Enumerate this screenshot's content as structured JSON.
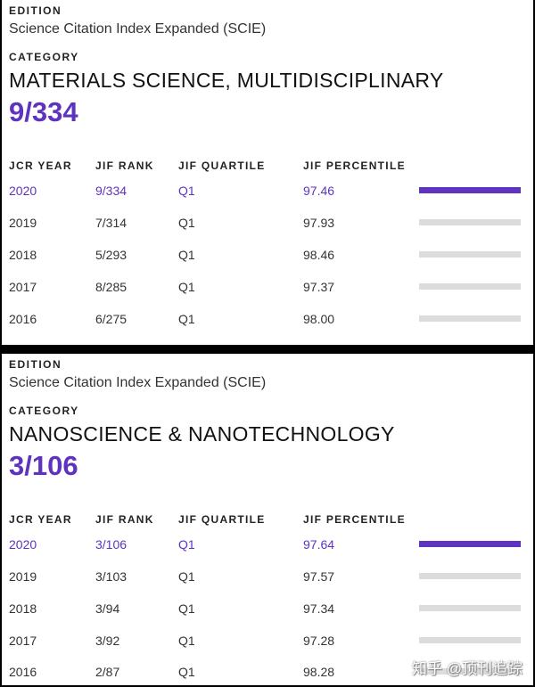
{
  "panels": [
    {
      "edition_label": "EDITION",
      "edition": "Science Citation Index Expanded (SCIE)",
      "category_label": "CATEGORY",
      "category": "MATERIALS SCIENCE, MULTIDISCIPLINARY",
      "rank": "9/334",
      "headers": [
        "JCR YEAR",
        "JIF RANK",
        "JIF QUARTILE",
        "JIF PERCENTILE"
      ],
      "rows": [
        [
          "2020",
          "9/334",
          "Q1",
          "97.46"
        ],
        [
          "2019",
          "7/314",
          "Q1",
          "97.93"
        ],
        [
          "2018",
          "5/293",
          "Q1",
          "98.46"
        ],
        [
          "2017",
          "8/285",
          "Q1",
          "97.37"
        ],
        [
          "2016",
          "6/275",
          "Q1",
          "98.00"
        ]
      ]
    },
    {
      "edition_label": "EDITION",
      "edition": "Science Citation Index Expanded (SCIE)",
      "category_label": "CATEGORY",
      "category": "NANOSCIENCE & NANOTECHNOLOGY",
      "rank": "3/106",
      "headers": [
        "JCR YEAR",
        "JIF RANK",
        "JIF QUARTILE",
        "JIF PERCENTILE"
      ],
      "rows": [
        [
          "2020",
          "3/106",
          "Q1",
          "97.64"
        ],
        [
          "2019",
          "3/103",
          "Q1",
          "97.57"
        ],
        [
          "2018",
          "3/94",
          "Q1",
          "97.34"
        ],
        [
          "2017",
          "3/92",
          "Q1",
          "97.28"
        ],
        [
          "2016",
          "2/87",
          "Q1",
          "98.28"
        ]
      ]
    }
  ],
  "accent_color": "#5e33bf",
  "watermark": "知乎 @顶刊追踪"
}
